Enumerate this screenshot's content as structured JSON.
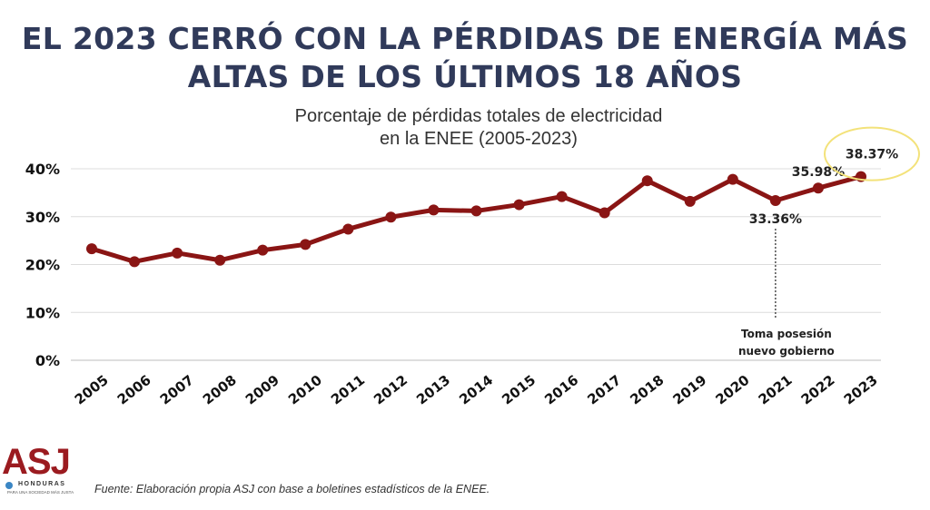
{
  "headline": {
    "line1": "EL 2023 CERRÓ CON LA PÉRDIDAS DE ENERGÍA MÁS",
    "line2": "ALTAS DE LOS ÚLTIMOS 18 AÑOS"
  },
  "chart_data": {
    "type": "line",
    "title": "Porcentaje de pérdidas totales de electricidad",
    "subtitle": "en la ENEE (2005-2023)",
    "x": [
      "2005",
      "2006",
      "2007",
      "2008",
      "2009",
      "2010",
      "2011",
      "2012",
      "2013",
      "2014",
      "2015",
      "2016",
      "2017",
      "2018",
      "2019",
      "2020",
      "2021",
      "2022",
      "2023"
    ],
    "series": [
      {
        "values": [
          23.3,
          20.6,
          22.4,
          20.9,
          23.0,
          24.2,
          27.4,
          29.9,
          31.4,
          31.2,
          32.5,
          34.2,
          30.8,
          37.5,
          33.2,
          37.8,
          33.36,
          35.98,
          38.37
        ]
      }
    ],
    "ylim": [
      0,
      40
    ],
    "yticks": [
      "0%",
      "10%",
      "20%",
      "30%",
      "40%"
    ],
    "ytick_values": [
      0,
      10,
      20,
      30,
      40
    ],
    "grid": true,
    "line_color": "#8a1514",
    "highlight_color": "#f3e27a",
    "annotations": [
      {
        "index": 16,
        "label": "33.36%",
        "position": "below"
      },
      {
        "index": 17,
        "label": "35.98%",
        "position": "above"
      },
      {
        "index": 18,
        "label": "38.37%",
        "position": "above",
        "circled": true
      },
      {
        "index": 16,
        "label_lines": [
          "Toma posesión",
          "nuevo gobierno"
        ],
        "type": "event-marker"
      }
    ]
  },
  "logo": {
    "text": "ASJ",
    "country": "HONDURAS",
    "tagline": "PARA UNA SOCIEDAD MÁS JUSTA"
  },
  "source": "Fuente: Elaboración propia ASJ con base a boletines estadísticos de la ENEE."
}
